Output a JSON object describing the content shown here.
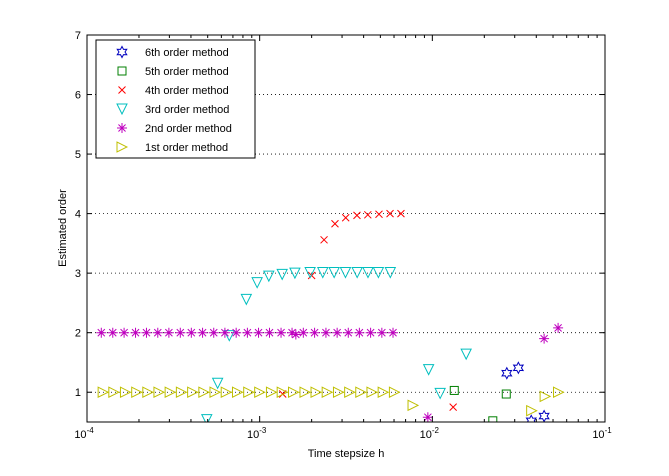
{
  "chart_data": {
    "type": "scatter",
    "title": "",
    "xlabel": "Time stepsize h",
    "ylabel": "Estimated order",
    "xscale": "log",
    "xlim": [
      0.0001,
      0.1
    ],
    "ylim": [
      0.5,
      7
    ],
    "xticks": [
      {
        "value": 0.0001,
        "base": "10",
        "exp": "-4"
      },
      {
        "value": 0.001,
        "base": "10",
        "exp": "-3"
      },
      {
        "value": 0.01,
        "base": "10",
        "exp": "-2"
      },
      {
        "value": 0.1,
        "base": "10",
        "exp": "-1"
      }
    ],
    "yticks": [
      1,
      2,
      3,
      4,
      5,
      6,
      7
    ],
    "grid": "y",
    "legend_position": "top-left",
    "series": [
      {
        "name": "6th order method",
        "marker": "hexagram",
        "color": "#0000bf",
        "x": [
          0.027,
          0.0315,
          0.0374,
          0.0444
        ],
        "y": [
          1.32,
          1.41,
          0.52,
          0.6
        ]
      },
      {
        "name": "5th order method",
        "marker": "square",
        "color": "#007f00",
        "x": [
          0.0134,
          0.0224,
          0.0268
        ],
        "y": [
          1.03,
          0.52,
          0.97
        ]
      },
      {
        "name": "4th order method",
        "marker": "x",
        "color": "#ff0000",
        "x": [
          0.00136,
          0.002,
          0.00236,
          0.00273,
          0.00315,
          0.00366,
          0.00423,
          0.00491,
          0.00569,
          0.00658,
          0.0132
        ],
        "y": [
          0.97,
          2.96,
          3.56,
          3.83,
          3.93,
          3.97,
          3.98,
          3.99,
          4.0,
          4.0,
          0.75
        ]
      },
      {
        "name": "3rd order method",
        "marker": "triangle-down",
        "color": "#00bfbf",
        "x": [
          0.000494,
          0.000571,
          0.000667,
          0.000837,
          0.000967,
          0.00113,
          0.00135,
          0.0016,
          0.00196,
          0.00232,
          0.0027,
          0.00314,
          0.00367,
          0.00424,
          0.00487,
          0.00571,
          0.00952,
          0.0111,
          0.0157
        ],
        "y": [
          0.54,
          1.15,
          1.95,
          2.56,
          2.84,
          2.95,
          2.98,
          3.0,
          3.01,
          3.01,
          3.01,
          3.01,
          3.01,
          3.01,
          3.01,
          3.01,
          1.38,
          0.98,
          1.64
        ]
      },
      {
        "name": "2nd order method",
        "marker": "asterisk",
        "color": "#bf00bf",
        "x": [
          0.000121,
          0.000141,
          0.000164,
          0.000191,
          0.000221,
          0.000257,
          0.000298,
          0.000347,
          0.000402,
          0.000467,
          0.000542,
          0.000629,
          0.000731,
          0.000849,
          0.000985,
          0.00114,
          0.00133,
          0.00154,
          0.00162,
          0.00179,
          0.00208,
          0.00242,
          0.00281,
          0.00326,
          0.00378,
          0.00439,
          0.0051,
          0.00592,
          0.00942,
          0.0444,
          0.0535
        ],
        "y": [
          2.0,
          2.0,
          2.0,
          2.0,
          2.0,
          2.0,
          2.0,
          2.0,
          2.0,
          2.0,
          2.0,
          2.0,
          2.0,
          2.0,
          2.0,
          2.0,
          2.0,
          2.0,
          1.97,
          2.0,
          2.0,
          2.0,
          2.0,
          2.0,
          2.0,
          2.0,
          2.0,
          2.0,
          0.58,
          1.9,
          2.08
        ]
      },
      {
        "name": "1st order method",
        "marker": "triangle-right",
        "color": "#bfbf00",
        "x": [
          0.000124,
          0.000143,
          0.000167,
          0.000194,
          0.000225,
          0.000261,
          0.000303,
          0.000352,
          0.000409,
          0.000475,
          0.000551,
          0.00064,
          0.000744,
          0.000864,
          0.001,
          0.00117,
          0.00135,
          0.00157,
          0.00183,
          0.00212,
          0.00246,
          0.00286,
          0.00332,
          0.00385,
          0.00447,
          0.00519,
          0.00603,
          0.00773,
          0.0376,
          0.045,
          0.0538
        ],
        "y": [
          1.0,
          1.0,
          1.0,
          1.0,
          1.0,
          1.0,
          1.0,
          1.0,
          1.0,
          1.0,
          1.0,
          1.0,
          1.0,
          1.0,
          1.0,
          1.0,
          1.0,
          1.0,
          1.0,
          1.0,
          1.0,
          1.0,
          1.0,
          1.0,
          1.0,
          1.0,
          1.0,
          0.78,
          0.69,
          0.93,
          1.0
        ]
      }
    ]
  }
}
